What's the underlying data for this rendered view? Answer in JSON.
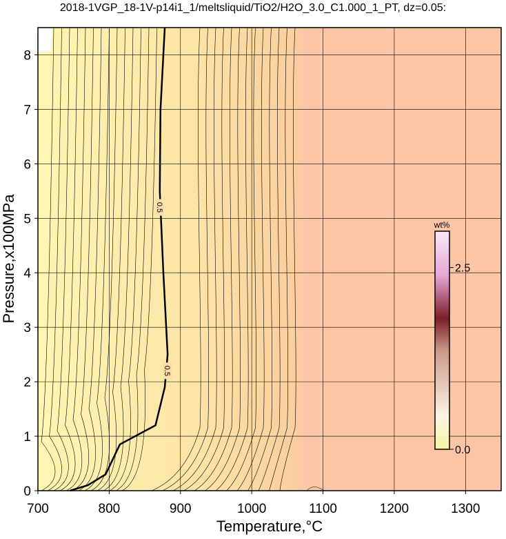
{
  "chart_data": {
    "type": "contour",
    "title": "2018-1VGP_18-1V-p14i1_1/meltsliquid/TiO2/H2O_3.0_C1.000_1_PT, dz=0.05:",
    "x_label": "Temperature,°C",
    "y_label": "Pressure,x100MPa",
    "xlim": [
      700,
      1350
    ],
    "ylim": [
      0,
      8.5
    ],
    "xticks": [
      700,
      800,
      900,
      1000,
      1100,
      1200,
      1300
    ],
    "yticks": [
      0,
      1,
      2,
      3,
      4,
      5,
      6,
      7,
      8
    ],
    "grid": true,
    "contour": {
      "level": 0.5,
      "labels": [
        "0.5",
        "0.5"
      ],
      "color": "#000000",
      "x": [
        745,
        770,
        795,
        815,
        865,
        878,
        882,
        876,
        871,
        872,
        878
      ],
      "y": [
        0,
        0.1,
        0.3,
        0.85,
        1.2,
        1.9,
        2.5,
        4,
        5.5,
        7,
        8.5
      ]
    },
    "colorbar": {
      "label": "wt%",
      "clim": [
        0,
        3.0
      ],
      "ticks": [
        {
          "value": 0,
          "label": "0.0"
        },
        {
          "value": 2.5,
          "label": "2.5"
        }
      ]
    }
  }
}
